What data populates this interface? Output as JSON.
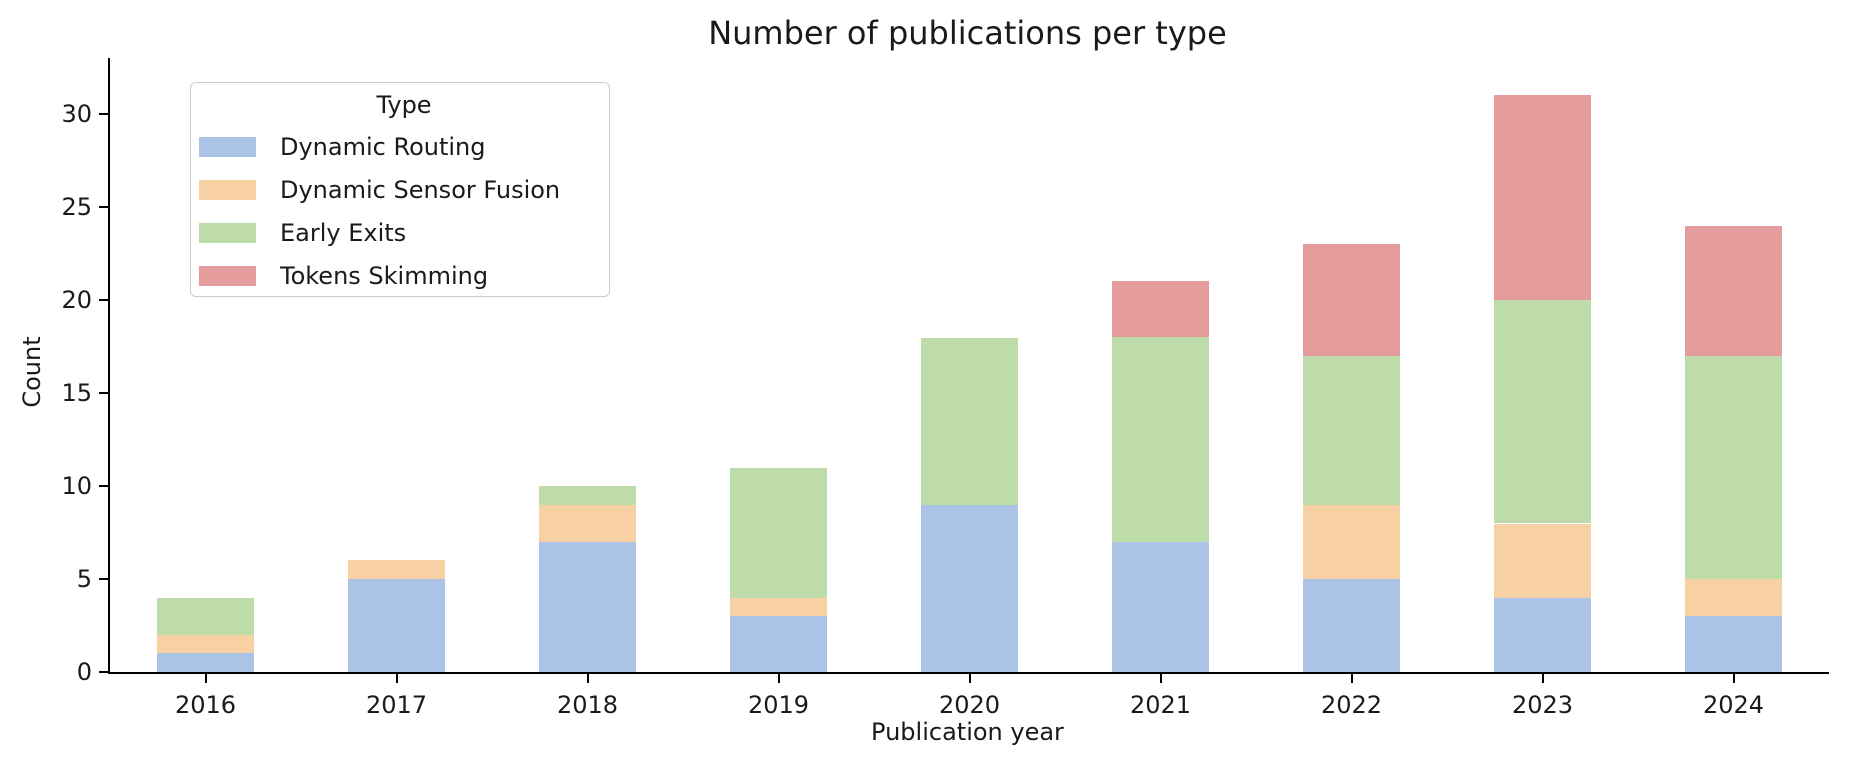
{
  "title": "Number of publications per type",
  "x_axis_label": "Publication year",
  "y_axis_label": "Count",
  "legend": {
    "title": "Type"
  },
  "colors": {
    "dynamic_routing": "#aac3e6",
    "dynamic_sensor_fusion": "#f7d0a4",
    "early_exits": "#bddcaa",
    "tokens_skimming": "#e49c9c",
    "axis": "#000000",
    "text": "#1a1a1a",
    "legend_border": "#cccccc"
  },
  "chart_data": {
    "type": "bar",
    "stacked": true,
    "title": "Number of publications per type",
    "xlabel": "Publication year",
    "ylabel": "Count",
    "categories": [
      "2016",
      "2017",
      "2018",
      "2019",
      "2020",
      "2021",
      "2022",
      "2023",
      "2024"
    ],
    "series": [
      {
        "name": "Dynamic Routing",
        "color": "#aac3e6",
        "values": [
          1,
          5,
          7,
          3,
          9,
          7,
          5,
          4,
          3
        ]
      },
      {
        "name": "Dynamic Sensor Fusion",
        "color": "#f7d0a4",
        "values": [
          1,
          1,
          2,
          1,
          0,
          0,
          4,
          4,
          2
        ]
      },
      {
        "name": "Early Exits",
        "color": "#bddcaa",
        "values": [
          2,
          0,
          1,
          7,
          9,
          11,
          8,
          12,
          12
        ]
      },
      {
        "name": "Tokens Skimming",
        "color": "#e49c9c",
        "values": [
          0,
          0,
          0,
          0,
          0,
          3,
          6,
          11,
          7
        ]
      }
    ],
    "totals": [
      4,
      6,
      10,
      11,
      18,
      21,
      23,
      31,
      24
    ],
    "ylim": [
      0,
      33
    ],
    "yticks": [
      0,
      5,
      10,
      15,
      20,
      25,
      30
    ],
    "grid": false,
    "legend_position": "upper left",
    "legend_title": "Type"
  }
}
